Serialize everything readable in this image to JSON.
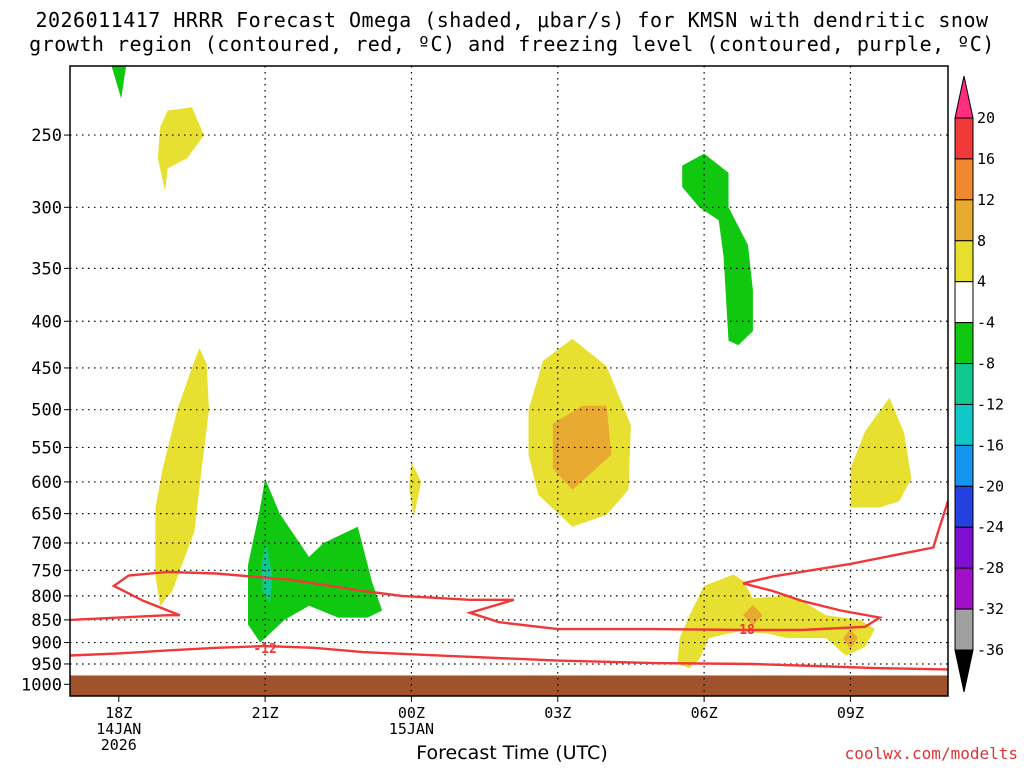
{
  "title_line1": "2026011417 HRRR Forecast Omega (shaded, μbar/s) for KMSN with dendritic snow",
  "title_line2": "growth region (contoured, red, ºC) and freezing level (contoured, purple, ºC)",
  "xlabel": "Forecast Time (UTC)",
  "credit": "coolwx.com/modelts",
  "chart_data": {
    "type": "time-height contour",
    "station": "KMSN",
    "model": "HRRR",
    "init": "2026011417",
    "x_unit": "forecast hours from 17Z 14 Jan 2026",
    "x_range": [
      0,
      18
    ],
    "y_unit": "pressure (hPa)",
    "y_range": [
      210,
      1030
    ],
    "y_ticks": [
      250,
      300,
      350,
      400,
      450,
      500,
      550,
      600,
      650,
      700,
      750,
      800,
      850,
      900,
      950,
      1000
    ],
    "x_ticks": [
      {
        "hour": 1,
        "label": "18Z",
        "sub1": "14JAN",
        "sub2": "2026"
      },
      {
        "hour": 4,
        "label": "21Z",
        "sub1": "",
        "sub2": ""
      },
      {
        "hour": 7,
        "label": "00Z",
        "sub1": "15JAN",
        "sub2": ""
      },
      {
        "hour": 10,
        "label": "03Z",
        "sub1": "",
        "sub2": ""
      },
      {
        "hour": 13,
        "label": "06Z",
        "sub1": "",
        "sub2": ""
      },
      {
        "hour": 16,
        "label": "09Z",
        "sub1": "",
        "sub2": ""
      }
    ],
    "colorbar": {
      "labels": [
        "20",
        "16",
        "12",
        "8",
        "4",
        "-4",
        "-8",
        "-12",
        "-16",
        "-20",
        "-24",
        "-28",
        "-32",
        "-36"
      ],
      "colors": [
        "#ff2e7e",
        "#f03838",
        "#f08830",
        "#e8aa30",
        "#e8e030",
        "#ffffff",
        "#10c810",
        "#10c890",
        "#10c8c8",
        "#1496f0",
        "#2440e0",
        "#8010d0",
        "#a010c8",
        "#a0a0a0",
        "#000000"
      ]
    },
    "ground_color": "#a0522d",
    "omega_regions": [
      {
        "name": "omega-green-top-left",
        "value_range": [
          -8,
          -4
        ],
        "color": "#10c810",
        "outline": [
          [
            0.85,
            210
          ],
          [
            1.15,
            210
          ],
          [
            1.05,
            228
          ]
        ]
      },
      {
        "name": "omega-yellow-upper-left",
        "value_range": [
          4,
          8
        ],
        "color": "#e8e030",
        "outline": [
          [
            1.85,
            245
          ],
          [
            2.0,
            235
          ],
          [
            2.5,
            233
          ],
          [
            2.75,
            250
          ],
          [
            2.4,
            265
          ],
          [
            2.0,
            272
          ],
          [
            1.95,
            288
          ],
          [
            1.8,
            265
          ]
        ]
      },
      {
        "name": "omega-yellow-left-column",
        "value_range": [
          4,
          8
        ],
        "color": "#e8e030",
        "outline": [
          [
            1.75,
            640
          ],
          [
            1.9,
            580
          ],
          [
            2.2,
            500
          ],
          [
            2.5,
            450
          ],
          [
            2.65,
            428
          ],
          [
            2.8,
            445
          ],
          [
            2.85,
            500
          ],
          [
            2.7,
            580
          ],
          [
            2.55,
            680
          ],
          [
            2.1,
            790
          ],
          [
            1.85,
            820
          ],
          [
            1.75,
            760
          ]
        ]
      },
      {
        "name": "omega-green-21z",
        "value_range": [
          -8,
          -4
        ],
        "color": "#10c810",
        "outline": [
          [
            3.65,
            740
          ],
          [
            3.9,
            640
          ],
          [
            4.0,
            595
          ],
          [
            4.3,
            650
          ],
          [
            4.9,
            725
          ],
          [
            5.2,
            700
          ],
          [
            5.9,
            672
          ],
          [
            6.2,
            775
          ],
          [
            6.4,
            830
          ],
          [
            6.1,
            845
          ],
          [
            5.5,
            845
          ],
          [
            4.9,
            820
          ],
          [
            4.4,
            850
          ],
          [
            3.9,
            900
          ],
          [
            3.65,
            860
          ]
        ]
      },
      {
        "name": "omega-teal-21z",
        "value_range": [
          -12,
          -8
        ],
        "color": "#10c890",
        "outline": [
          [
            3.92,
            740
          ],
          [
            4.02,
            700
          ],
          [
            4.15,
            760
          ],
          [
            4.1,
            815
          ],
          [
            3.95,
            790
          ]
        ]
      },
      {
        "name": "omega-yellow-00z-blob",
        "value_range": [
          4,
          8
        ],
        "color": "#e8e030",
        "outline": [
          [
            6.95,
            608
          ],
          [
            7.0,
            570
          ],
          [
            7.2,
            600
          ],
          [
            7.05,
            655
          ]
        ]
      },
      {
        "name": "omega-yellow-03z",
        "value_range": [
          4,
          8
        ],
        "color": "#e8e030",
        "outline": [
          [
            9.4,
            500
          ],
          [
            9.7,
            442
          ],
          [
            10.3,
            418
          ],
          [
            11.0,
            448
          ],
          [
            11.5,
            520
          ],
          [
            11.45,
            612
          ],
          [
            11.0,
            652
          ],
          [
            10.3,
            672
          ],
          [
            9.6,
            620
          ],
          [
            9.4,
            560
          ]
        ]
      },
      {
        "name": "omega-orange-03z",
        "value_range": [
          8,
          12
        ],
        "color": "#e8aa30",
        "outline": [
          [
            9.9,
            518
          ],
          [
            10.5,
            495
          ],
          [
            11.0,
            495
          ],
          [
            11.1,
            560
          ],
          [
            10.3,
            612
          ],
          [
            9.9,
            580
          ]
        ]
      },
      {
        "name": "omega-green-06z-upper",
        "value_range": [
          -8,
          -4
        ],
        "color": "#10c810",
        "outline": [
          [
            12.55,
            270
          ],
          [
            13.0,
            262
          ],
          [
            13.5,
            275
          ],
          [
            13.5,
            300
          ],
          [
            13.9,
            330
          ],
          [
            14.0,
            370
          ],
          [
            14.0,
            410
          ],
          [
            13.7,
            425
          ],
          [
            13.5,
            420
          ],
          [
            13.4,
            340
          ],
          [
            13.3,
            310
          ],
          [
            12.9,
            300
          ],
          [
            12.55,
            285
          ]
        ]
      },
      {
        "name": "omega-yellow-06z-lower",
        "value_range": [
          4,
          8
        ],
        "color": "#e8e030",
        "outline": [
          [
            12.5,
            890
          ],
          [
            12.7,
            840
          ],
          [
            13.0,
            780
          ],
          [
            13.6,
            758
          ],
          [
            13.8,
            770
          ],
          [
            14.0,
            805
          ],
          [
            14.6,
            800
          ],
          [
            15.0,
            810
          ],
          [
            15.5,
            840
          ],
          [
            16.2,
            850
          ],
          [
            16.5,
            870
          ],
          [
            16.3,
            910
          ],
          [
            15.9,
            930
          ],
          [
            15.5,
            890
          ],
          [
            14.7,
            890
          ],
          [
            14.3,
            880
          ],
          [
            13.7,
            875
          ],
          [
            13.1,
            890
          ],
          [
            12.9,
            940
          ],
          [
            12.7,
            960
          ],
          [
            12.45,
            950
          ]
        ]
      },
      {
        "name": "omega-orange-06z-small-1",
        "value_range": [
          8,
          12
        ],
        "color": "#e8aa30",
        "outline": [
          [
            13.8,
            840
          ],
          [
            14.0,
            818
          ],
          [
            14.2,
            840
          ],
          [
            14.0,
            862
          ]
        ]
      },
      {
        "name": "omega-orange-06z-small-2",
        "value_range": [
          8,
          12
        ],
        "color": "#e8aa30",
        "outline": [
          [
            15.85,
            890
          ],
          [
            16.0,
            870
          ],
          [
            16.15,
            890
          ],
          [
            16.0,
            915
          ]
        ]
      },
      {
        "name": "omega-yellow-09z",
        "value_range": [
          4,
          8
        ],
        "color": "#e8e030",
        "outline": [
          [
            16.0,
            580
          ],
          [
            16.3,
            528
          ],
          [
            16.8,
            485
          ],
          [
            17.1,
            530
          ],
          [
            17.25,
            595
          ],
          [
            17.0,
            630
          ],
          [
            16.6,
            640
          ],
          [
            16.0,
            640
          ]
        ]
      }
    ],
    "red_contours": [
      {
        "name": "contour-minus-12",
        "value": "-12",
        "color": "#f03838",
        "label_at": [
          4.0,
          912
        ],
        "points": [
          [
            0,
            930
          ],
          [
            1.0,
            925
          ],
          [
            2.0,
            918
          ],
          [
            3.0,
            912
          ],
          [
            4.0,
            908
          ],
          [
            5.0,
            912
          ],
          [
            6.0,
            922
          ],
          [
            8.0,
            932
          ],
          [
            10.0,
            942
          ],
          [
            12.0,
            948
          ],
          [
            14.0,
            950
          ],
          [
            15.6,
            956
          ],
          [
            16.5,
            960
          ],
          [
            18,
            963
          ]
        ]
      },
      {
        "name": "contour-minus-18",
        "value": "-18",
        "color": "#f03838",
        "label_at": [
          13.8,
          870
        ],
        "points": [
          [
            0,
            850
          ],
          [
            1.0,
            845
          ],
          [
            2.0,
            840
          ],
          [
            2.25,
            840
          ],
          [
            1.5,
            810
          ],
          [
            0.9,
            780
          ],
          [
            1.2,
            760
          ],
          [
            2.0,
            753
          ],
          [
            3.0,
            756
          ],
          [
            4.5,
            768
          ],
          [
            6.0,
            790
          ],
          [
            6.8,
            800
          ],
          [
            8.2,
            808
          ],
          [
            9.1,
            808
          ],
          [
            8.2,
            835
          ],
          [
            8.8,
            855
          ],
          [
            10.0,
            870
          ],
          [
            12.0,
            870
          ],
          [
            13.8,
            872
          ],
          [
            15.0,
            872
          ],
          [
            16.3,
            865
          ],
          [
            16.6,
            845
          ],
          [
            15.8,
            830
          ],
          [
            15.0,
            810
          ],
          [
            14.4,
            790
          ],
          [
            13.8,
            775
          ],
          [
            14.4,
            762
          ],
          [
            16.0,
            738
          ],
          [
            17.7,
            708
          ],
          [
            17.8,
            680
          ],
          [
            18.0,
            630
          ]
        ]
      }
    ]
  }
}
